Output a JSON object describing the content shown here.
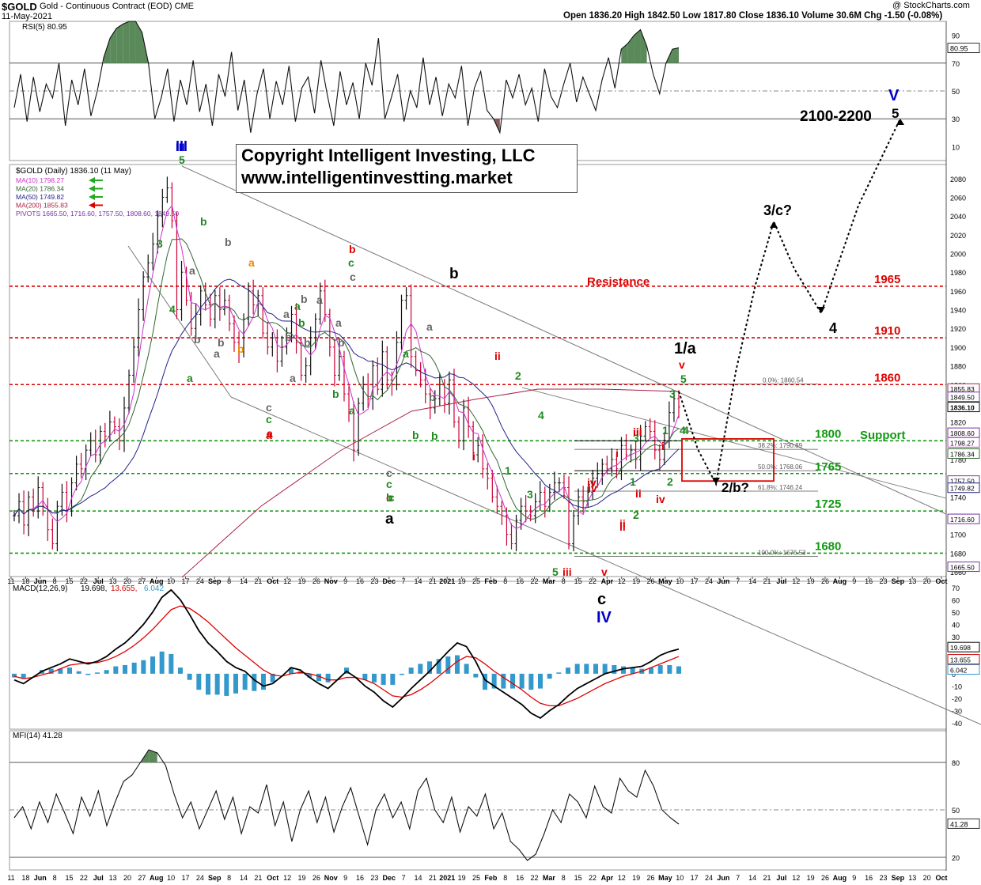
{
  "header": {
    "symbol": "$GOLD",
    "description": "Gold - Continuous Contract (EOD)",
    "exchange": "CME",
    "date": "11-May-2021",
    "ohlc": "Open 1836.20  High 1842.50  Low 1817.80  Close 1836.10  Volume 30.6M  Chg -1.50 (-0.08%)",
    "watermark": "@ StockCharts.com"
  },
  "copyright": {
    "line1": "Copyright Intelligent Investing, LLC",
    "line2": "www.intelligentinvestting.market"
  },
  "colors": {
    "price_up": "#111111",
    "price_down": "#cc0033",
    "ma10": "#cc33cc",
    "ma20": "#336633",
    "ma50": "#222288",
    "ma200": "#aa2244",
    "resistance": "#dd0000",
    "support": "#119911",
    "histogram": "#3399cc",
    "overbought_fill": "#5a8a5a",
    "oversold_fill": "#8a5a5a"
  },
  "chart_data": [
    {
      "type": "line",
      "panel": "RSI",
      "title": "RSI(5) 80.95",
      "last_value": "80.95",
      "ylim": [
        0,
        100
      ],
      "y_ticks": [
        "90",
        "70",
        "50",
        "30",
        "10"
      ],
      "reference_lines": [
        70,
        50,
        30
      ],
      "values": [
        38,
        62,
        28,
        60,
        35,
        55,
        45,
        70,
        25,
        58,
        40,
        66,
        32,
        50,
        74,
        88,
        95,
        98,
        100,
        100,
        92,
        70,
        30,
        45,
        66,
        28,
        58,
        40,
        72,
        35,
        55,
        25,
        62,
        46,
        78,
        36,
        58,
        20,
        48,
        66,
        30,
        57,
        40,
        68,
        28,
        52,
        60,
        34,
        72,
        47,
        25,
        64,
        40,
        56,
        30,
        70,
        54,
        88,
        30,
        45,
        62,
        28,
        50,
        38,
        74,
        40,
        60,
        32,
        55,
        45,
        68,
        25,
        52,
        64,
        36,
        30,
        20,
        58,
        45,
        62,
        40,
        52,
        28,
        66,
        46,
        38,
        55,
        70,
        42,
        60,
        48,
        36,
        58,
        74,
        52,
        80,
        84,
        90,
        94,
        82,
        62,
        48,
        70,
        80,
        81
      ]
    },
    {
      "type": "line",
      "panel": "Price",
      "title": "$GOLD (Daily) 1836.10 (11 May)",
      "ylim": [
        1655,
        2095
      ],
      "y_ticks": [
        "2080",
        "2060",
        "2040",
        "2020",
        "2000",
        "1980",
        "1960",
        "1940",
        "1920",
        "1900",
        "1880",
        "1860",
        "1840",
        "1820",
        "1800",
        "1780",
        "1760",
        "1740",
        "1720",
        "1700",
        "1680",
        "1660"
      ],
      "x_ticks": [
        "11",
        "18",
        "Jun",
        "8",
        "15",
        "22",
        "Jul",
        "13",
        "20",
        "27",
        "Aug",
        "10",
        "17",
        "24",
        "Sep",
        "8",
        "14",
        "21",
        "Oct",
        "12",
        "19",
        "26",
        "Nov",
        "9",
        "16",
        "23",
        "Dec",
        "7",
        "14",
        "21",
        "2021",
        "19",
        "25",
        "Feb",
        "8",
        "16",
        "22",
        "Mar",
        "8",
        "15",
        "22",
        "Apr",
        "12",
        "19",
        "26",
        "May",
        "10",
        "17",
        "24",
        "Jun",
        "7",
        "14",
        "21",
        "Jul",
        "12",
        "19",
        "26",
        "Aug",
        "9",
        "16",
        "23",
        "Sep",
        "13",
        "20",
        "Oct"
      ],
      "legend": [
        {
          "label": "MA(10) 1798.27",
          "color": "#cc33cc"
        },
        {
          "label": "MA(20) 1786.34",
          "color": "#336633"
        },
        {
          "label": "MA(50) 1749.82",
          "color": "#222288"
        },
        {
          "label": "MA(200) 1855.83",
          "color": "#aa2244"
        },
        {
          "label": "PIVOTS 1665.50, 1716.60, 1757.50, 1808.60, 1849.50",
          "color": "#7733aa"
        }
      ],
      "close": [
        1720,
        1735,
        1710,
        1740,
        1725,
        1750,
        1730,
        1705,
        1690,
        1730,
        1745,
        1725,
        1755,
        1775,
        1770,
        1790,
        1800,
        1785,
        1810,
        1805,
        1820,
        1815,
        1800,
        1835,
        1870,
        1900,
        1940,
        1975,
        1990,
        2010,
        2040,
        2060,
        2070,
        2035,
        1940,
        1980,
        1950,
        1920,
        1935,
        1960,
        1945,
        1930,
        1955,
        1940,
        1950,
        1925,
        1905,
        1895,
        1930,
        1960,
        1945,
        1955,
        1915,
        1900,
        1910,
        1885,
        1900,
        1915,
        1935,
        1905,
        1870,
        1880,
        1910,
        1930,
        1960,
        1935,
        1900,
        1870,
        1890,
        1850,
        1830,
        1790,
        1840,
        1860,
        1845,
        1880,
        1855,
        1895,
        1865,
        1860,
        1905,
        1950,
        1955,
        1890,
        1875,
        1865,
        1850,
        1835,
        1845,
        1860,
        1840,
        1865,
        1820,
        1800,
        1835,
        1815,
        1785,
        1795,
        1770,
        1760,
        1740,
        1730,
        1720,
        1700,
        1690,
        1715,
        1730,
        1725,
        1720,
        1735,
        1745,
        1730,
        1745,
        1755,
        1755,
        1750,
        1690,
        1720,
        1740,
        1735,
        1745,
        1760,
        1765,
        1775,
        1770,
        1780,
        1770,
        1795,
        1785,
        1790,
        1780,
        1805,
        1815,
        1810,
        1790,
        1780,
        1800,
        1830,
        1845,
        1836
      ],
      "resistance_lines": [
        {
          "value": 1965,
          "label": "1965"
        },
        {
          "value": 1910,
          "label": "1910"
        },
        {
          "value": 1860,
          "label": "1860"
        }
      ],
      "support_lines": [
        {
          "value": 1800,
          "label": "1800"
        },
        {
          "value": 1765,
          "label": "1765"
        },
        {
          "value": 1725,
          "label": "1725"
        },
        {
          "value": 1680,
          "label": "1680"
        }
      ],
      "fib_levels": [
        {
          "value": 1860.54,
          "label": "0.0%: 1860.54"
        },
        {
          "value": 1790.89,
          "label": "38.2%: 1790.89"
        },
        {
          "value": 1768.06,
          "label": "50.0%: 1768.06"
        },
        {
          "value": 1746.24,
          "label": "61.8%: 1746.24"
        },
        {
          "value": 1676.53,
          "label": "100.0%: 1676.53"
        }
      ],
      "right_axis_labels": [
        "1855.83",
        "1849.50",
        "1836.10",
        "1808.60",
        "1798.27",
        "1786.34",
        "1757.50",
        "1749.82",
        "1716.60",
        "1665.50"
      ],
      "text_labels": {
        "resistance": "Resistance",
        "support": "Support",
        "target": "2100-2200",
        "proj_3c": "3/c?",
        "proj_2b": "2/b?",
        "proj_4": "4",
        "proj_v": "V",
        "proj_5": "5",
        "one_a": "1/a",
        "big_III": "III",
        "big_IV": "IV",
        "big_c": "c",
        "big_b": "b",
        "big_a": "a"
      }
    },
    {
      "type": "line",
      "panel": "MACD",
      "title": "MACD(12,26,9) 19.698, 13.655, 6.042",
      "macd_label": "MACD(12,26,9)",
      "macd_value": "19.698",
      "signal_value": "13.655",
      "hist_value": "6.042",
      "ylim": [
        -45,
        75
      ],
      "y_ticks": [
        "70",
        "60",
        "50",
        "40",
        "30",
        "20",
        "10",
        "0",
        "-10",
        "-20",
        "-30",
        "-40"
      ],
      "right_axis_labels": [
        "19.698",
        "13.655",
        "6.042"
      ],
      "macd": [
        -5,
        -8,
        -3,
        2,
        5,
        8,
        12,
        10,
        8,
        10,
        14,
        20,
        25,
        32,
        40,
        50,
        62,
        68,
        60,
        48,
        35,
        25,
        18,
        10,
        5,
        2,
        -5,
        -10,
        -8,
        -2,
        5,
        3,
        -3,
        -8,
        -12,
        -5,
        2,
        -3,
        -10,
        -15,
        -22,
        -27,
        -20,
        -12,
        -5,
        2,
        10,
        18,
        25,
        22,
        10,
        -5,
        -10,
        -15,
        -20,
        -25,
        -32,
        -36,
        -30,
        -25,
        -18,
        -12,
        -8,
        -4,
        0,
        2,
        4,
        5,
        6,
        10,
        15,
        18,
        20
      ],
      "signal": [
        -2,
        -4,
        -3,
        -1,
        1,
        4,
        7,
        8,
        9,
        9,
        11,
        14,
        18,
        23,
        29,
        36,
        44,
        52,
        55,
        53,
        48,
        42,
        35,
        28,
        21,
        15,
        9,
        3,
        -1,
        -2,
        0,
        1,
        0,
        -2,
        -5,
        -5,
        -3,
        -3,
        -5,
        -8,
        -13,
        -18,
        -19,
        -17,
        -13,
        -8,
        -2,
        4,
        10,
        14,
        13,
        8,
        2,
        -3,
        -8,
        -13,
        -19,
        -24,
        -26,
        -26,
        -23,
        -20,
        -16,
        -12,
        -8,
        -5,
        -2,
        0,
        2,
        5,
        8,
        11,
        14
      ]
    },
    {
      "type": "line",
      "panel": "MFI",
      "title": "MFI(14) 41.28",
      "last_value": "41.28",
      "ylim": [
        12,
        100
      ],
      "y_ticks": [
        "80",
        "50",
        "20"
      ],
      "reference_lines": [
        80,
        50,
        20
      ],
      "values": [
        45,
        52,
        38,
        55,
        42,
        60,
        48,
        35,
        58,
        46,
        62,
        40,
        55,
        68,
        72,
        80,
        88,
        86,
        78,
        60,
        45,
        55,
        38,
        50,
        62,
        44,
        58,
        35,
        52,
        48,
        66,
        40,
        55,
        30,
        50,
        62,
        42,
        58,
        36,
        52,
        64,
        46,
        28,
        50,
        60,
        45,
        55,
        38,
        62,
        70,
        50,
        42,
        58,
        36,
        52,
        46,
        60,
        38,
        48,
        30,
        25,
        18,
        22,
        35,
        50,
        42,
        60,
        55,
        45,
        65,
        52,
        48,
        70,
        62,
        58,
        75,
        65,
        50,
        45,
        41
      ]
    }
  ],
  "wave_labels": [
    {
      "t": "5",
      "c": "#228822"
    },
    {
      "t": "III",
      "c": "#0000cc"
    },
    {
      "t": "3",
      "c": "#228822"
    },
    {
      "t": "4",
      "c": "#228822"
    },
    {
      "t": "a",
      "c": "#228822"
    },
    {
      "t": "b",
      "c": "#228822"
    },
    {
      "t": "b",
      "c": "#666666"
    },
    {
      "t": "a",
      "c": "#666666"
    },
    {
      "t": "b",
      "c": "#666666"
    },
    {
      "t": "a",
      "c": "#666666"
    },
    {
      "t": "b",
      "c": "#666666"
    },
    {
      "t": "a",
      "c": "#ee8800"
    },
    {
      "t": "b",
      "c": "#ee8800"
    },
    {
      "t": "c",
      "c": "#666666"
    },
    {
      "t": "c",
      "c": "#228822"
    },
    {
      "t": "a",
      "c": "#dd0000"
    },
    {
      "t": "b",
      "c": "#dd0000"
    },
    {
      "t": "c",
      "c": "#228822"
    },
    {
      "t": "c",
      "c": "#666666"
    },
    {
      "t": "a",
      "c": "#228822"
    },
    {
      "t": "b",
      "c": "#228822"
    },
    {
      "t": "a",
      "c": "#666666"
    },
    {
      "t": "b",
      "c": "#666666"
    },
    {
      "t": "a",
      "c": "#666666"
    },
    {
      "t": "b",
      "c": "#666666"
    },
    {
      "t": "a",
      "c": "#666666"
    },
    {
      "t": "b",
      "c": "#666666"
    },
    {
      "t": "a",
      "c": "#666666"
    },
    {
      "t": "b",
      "c": "#666666"
    },
    {
      "t": "a",
      "c": "#228822"
    },
    {
      "t": "b",
      "c": "#228822"
    },
    {
      "t": "c",
      "c": "#666666"
    },
    {
      "t": "c",
      "c": "#228822"
    },
    {
      "t": "a",
      "c": "#dd0000"
    },
    {
      "t": "c",
      "c": "#228822"
    },
    {
      "t": "c",
      "c": "#dd0000"
    },
    {
      "t": "b",
      "c": "#228822"
    },
    {
      "t": "a",
      "c": "#228822"
    },
    {
      "t": "b",
      "c": "#666666"
    },
    {
      "t": "a",
      "c": "#666666"
    },
    {
      "t": "ii",
      "c": "#dd0000"
    },
    {
      "t": "i",
      "c": "#dd0000"
    },
    {
      "t": "2",
      "c": "#228822"
    },
    {
      "t": "1",
      "c": "#228822"
    },
    {
      "t": "4",
      "c": "#228822"
    },
    {
      "t": "3",
      "c": "#228822"
    },
    {
      "t": "5",
      "c": "#228822"
    },
    {
      "t": "iii",
      "c": "#dd0000"
    },
    {
      "t": "v",
      "c": "#dd0000"
    },
    {
      "t": "iv",
      "c": "#dd0000"
    },
    {
      "t": "i",
      "c": "#dd0000"
    },
    {
      "t": "ii",
      "c": "#dd0000"
    },
    {
      "t": "iii",
      "c": "#dd0000"
    },
    {
      "t": "iv",
      "c": "#dd0000"
    },
    {
      "t": "v",
      "c": "#dd0000"
    },
    {
      "t": "1",
      "c": "#228822"
    },
    {
      "t": "2",
      "c": "#228822"
    },
    {
      "t": "3",
      "c": "#228822"
    },
    {
      "t": "4",
      "c": "#228822"
    },
    {
      "t": "5",
      "c": "#228822"
    },
    {
      "t": "1",
      "c": "#228822"
    },
    {
      "t": "2",
      "c": "#228822"
    },
    {
      "t": "3",
      "c": "#228822"
    },
    {
      "t": "4",
      "c": "#228822"
    },
    {
      "t": "b",
      "c": "#228822"
    },
    {
      "t": "iv",
      "c": "#dd0000"
    },
    {
      "t": "i",
      "c": "#dd0000"
    },
    {
      "t": "ii",
      "c": "#dd0000"
    },
    {
      "t": "iii",
      "c": "#dd0000"
    },
    {
      "t": "i",
      "c": "#dd0000"
    },
    {
      "t": "ii",
      "c": "#dd0000"
    },
    {
      "t": "b",
      "c": "#228822"
    }
  ]
}
